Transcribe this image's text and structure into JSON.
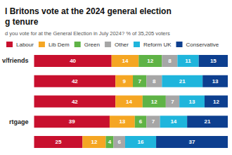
{
  "chart_data": {
    "type": "bar",
    "title": "l Britons vote at the 2024 general election\ng tenure",
    "subtitle": "d you vote for at the General Election in July 2024? % of 35,205 voters",
    "orientation": "horizontal",
    "stacked": true,
    "data_labels": true,
    "tick_labels": "y",
    "legend": "top-left",
    "categories": [
      "v/friends",
      null,
      null,
      "rtgage",
      null
    ],
    "xlim": [
      0,
      100
    ],
    "series": [
      {
        "name": "Labour",
        "color": "#c8102e",
        "values": [
          40,
          42,
          42,
          39,
          25
        ]
      },
      {
        "name": "Lib Dem",
        "color": "#f5a623",
        "values": [
          14,
          9,
          14,
          13,
          12
        ]
      },
      {
        "name": "Green",
        "color": "#5fb346",
        "values": [
          12,
          7,
          12,
          6,
          4
        ]
      },
      {
        "name": "Other",
        "color": "#a6a6a6",
        "values": [
          8,
          8,
          7,
          7,
          6
        ]
      },
      {
        "name": "Reform UK",
        "color": "#1fb5dc",
        "values": [
          11,
          21,
          13,
          14,
          16
        ]
      },
      {
        "name": "Conservative",
        "color": "#0d3f8f",
        "values": [
          15,
          13,
          12,
          21,
          37
        ]
      }
    ]
  }
}
